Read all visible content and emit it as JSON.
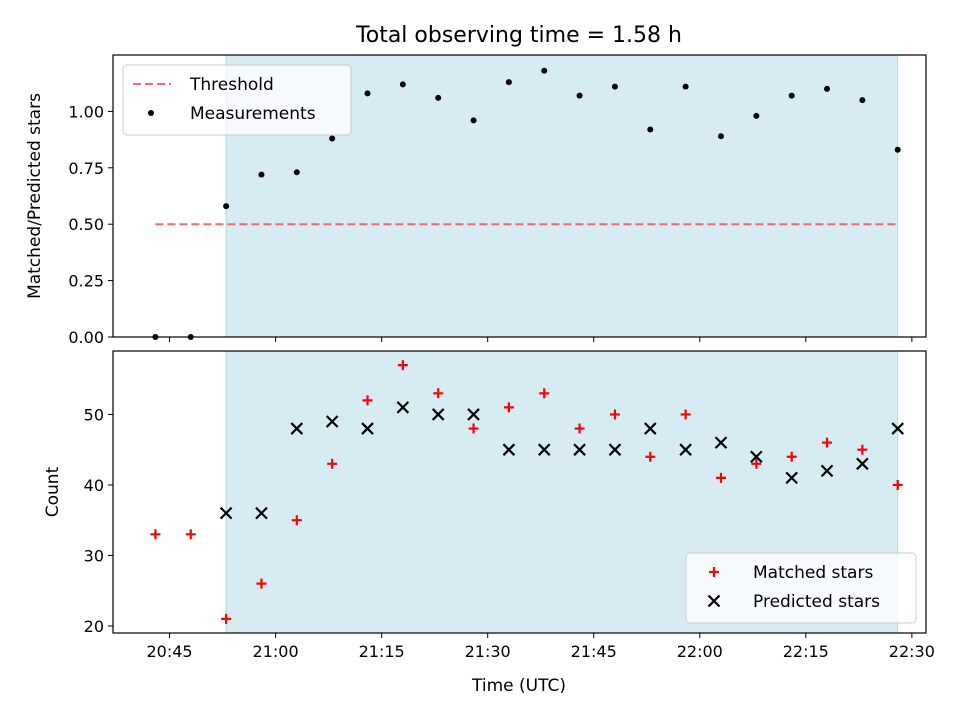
{
  "chart_data": [
    {
      "type": "scatter",
      "title": "Total observing time = 1.58 h",
      "xlabel": "",
      "ylabel": "Matched/Predicted stars",
      "ylim": [
        0,
        1.25
      ],
      "yticks": [
        "0.00",
        "0.25",
        "0.50",
        "0.75",
        "1.00"
      ],
      "xlim": [
        "20:37",
        "22:32"
      ],
      "shaded_region": {
        "from": "20:53",
        "to": "22:28",
        "color": "#add8e6"
      },
      "legend": {
        "position": "upper-left"
      },
      "threshold": {
        "name": "Threshold",
        "value": 0.5,
        "from": "20:43",
        "to": "22:28",
        "color": "#ff6666"
      },
      "series": [
        {
          "name": "Measurements",
          "marker": "dot",
          "color": "#000000",
          "x": [
            "20:43",
            "20:48",
            "20:53",
            "20:58",
            "21:03",
            "21:08",
            "21:13",
            "21:18",
            "21:23",
            "21:28",
            "21:33",
            "21:38",
            "21:43",
            "21:48",
            "21:53",
            "21:58",
            "22:03",
            "22:08",
            "22:13",
            "22:18",
            "22:23",
            "22:28"
          ],
          "y": [
            0.0,
            0.0,
            0.58,
            0.72,
            0.73,
            0.88,
            1.08,
            1.12,
            1.06,
            0.96,
            1.13,
            1.18,
            1.07,
            1.11,
            0.92,
            1.11,
            0.89,
            0.98,
            1.07,
            1.1,
            1.05,
            0.83
          ]
        }
      ]
    },
    {
      "type": "scatter",
      "title": "",
      "xlabel": "Time (UTC)",
      "ylabel": "Count",
      "ylim": [
        19,
        59
      ],
      "yticks": [
        "20",
        "30",
        "40",
        "50"
      ],
      "xlim": [
        "20:37",
        "22:32"
      ],
      "xticks": [
        "20:45",
        "21:00",
        "21:15",
        "21:30",
        "21:45",
        "22:00",
        "22:15",
        "22:30"
      ],
      "shaded_region": {
        "from": "20:53",
        "to": "22:28",
        "color": "#add8e6"
      },
      "legend": {
        "position": "lower-right"
      },
      "series": [
        {
          "name": "Matched stars",
          "marker": "plus",
          "color": "#ff0000",
          "x": [
            "20:43",
            "20:48",
            "20:53",
            "20:58",
            "21:03",
            "21:08",
            "21:13",
            "21:18",
            "21:23",
            "21:28",
            "21:33",
            "21:38",
            "21:43",
            "21:48",
            "21:53",
            "21:58",
            "22:03",
            "22:08",
            "22:13",
            "22:18",
            "22:23",
            "22:28"
          ],
          "y": [
            33,
            33,
            21,
            26,
            35,
            43,
            52,
            57,
            53,
            48,
            51,
            53,
            48,
            50,
            44,
            50,
            41,
            43,
            44,
            46,
            45,
            40
          ]
        },
        {
          "name": "Predicted stars",
          "marker": "x",
          "color": "#000000",
          "x": [
            "20:53",
            "20:58",
            "21:03",
            "21:08",
            "21:13",
            "21:18",
            "21:23",
            "21:28",
            "21:33",
            "21:38",
            "21:43",
            "21:48",
            "21:53",
            "21:58",
            "22:03",
            "22:08",
            "22:13",
            "22:18",
            "22:23",
            "22:28"
          ],
          "y": [
            36,
            36,
            48,
            49,
            48,
            51,
            50,
            50,
            45,
            45,
            45,
            45,
            48,
            45,
            46,
            44,
            41,
            42,
            43,
            48
          ]
        }
      ]
    }
  ]
}
